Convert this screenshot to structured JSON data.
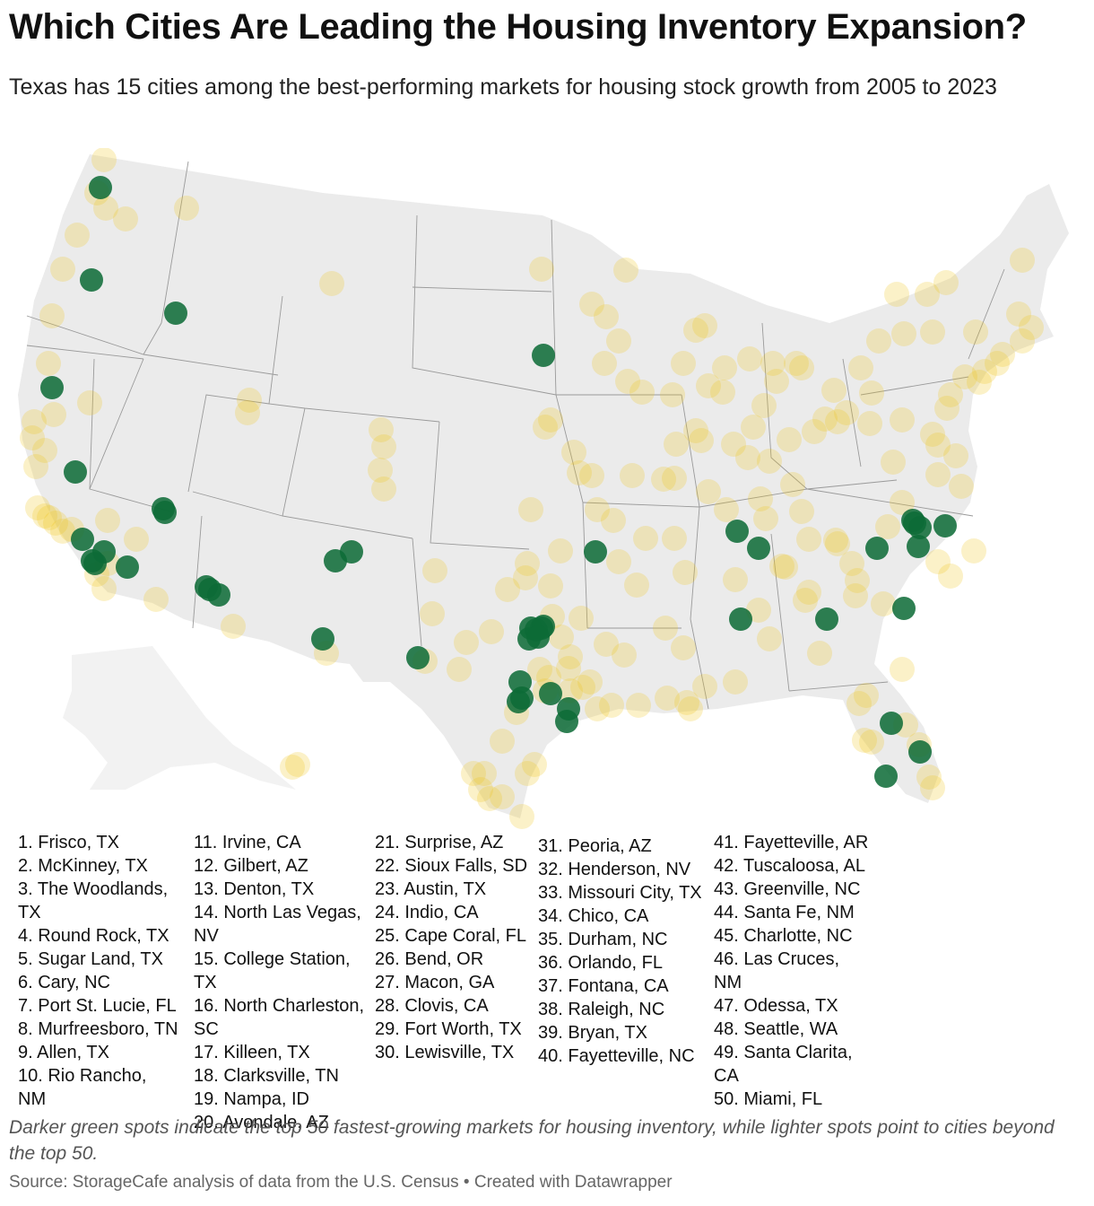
{
  "title": "Which Cities Are Leading the Housing Inventory Expansion?",
  "subtitle": "Texas has 15 cities among the best-performing markets for housing stock growth from 2005 to 2023",
  "colors": {
    "top": "#0d6b37",
    "other": "#f0c419",
    "land": "#ebebeb",
    "border": "#9a9a9a"
  },
  "legend_columns": [
    [
      "1. Frisco, TX",
      "2. McKinney, TX",
      "3. The Woodlands, TX",
      "4. Round Rock, TX",
      "5. Sugar Land, TX",
      "6. Cary, NC",
      "7. Port St. Lucie, FL",
      "8. Murfreesboro, TN",
      "9. Allen, TX",
      "10. Rio Rancho, NM"
    ],
    [
      "11. Irvine, CA",
      "12. Gilbert, AZ",
      "13. Denton, TX",
      "14. North Las Vegas, NV",
      "15. College Station, TX",
      "16. North Charleston, SC",
      "17. Killeen, TX",
      "18. Clarksville, TN",
      "19. Nampa, ID",
      "20. Avondale, AZ"
    ],
    [
      "21. Surprise, AZ",
      "22. Sioux Falls, SD",
      "23. Austin, TX",
      "24. Indio, CA",
      "25. Cape Coral, FL",
      "26. Bend, OR",
      "27. Macon, GA",
      "28. Clovis, CA",
      "29. Fort Worth, TX",
      "30. Lewisville, TX"
    ],
    [
      "31. Peoria, AZ",
      "32. Henderson, NV",
      "33. Missouri City, TX",
      "34. Chico, CA",
      "35. Durham, NC",
      "36. Orlando, FL",
      "37. Fontana, CA",
      "38. Raleigh, NC",
      "39. Bryan, TX",
      "40. Fayetteville, NC"
    ],
    [
      "41. Fayetteville, AR",
      "42. Tuscaloosa, AL",
      "43. Greenville, NC",
      "44. Santa Fe, NM",
      "45. Charlotte, NC",
      "46. Las Cruces, NM",
      "47. Odessa, TX",
      "48. Seattle, WA",
      "49. Santa Clarita, CA",
      "50. Miami, FL"
    ]
  ],
  "note": "Darker green spots indicate the top 50 fastest-growing markets for housing inventory, while lighter spots point to cities beyond the top 50.",
  "source": "Source: StorageCafe analysis of data from the U.S. Census • Created with Datawrapper"
}
